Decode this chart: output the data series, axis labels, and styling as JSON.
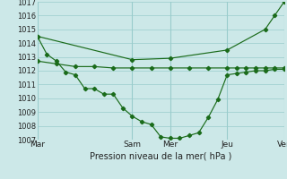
{
  "background_color": "#cce8e8",
  "grid_color": "#99cccc",
  "line_color": "#1a6b1a",
  "xlabel": "Pression niveau de la mer( hPa )",
  "ylim": [
    1007,
    1017
  ],
  "yticks": [
    1007,
    1008,
    1009,
    1010,
    1011,
    1012,
    1013,
    1014,
    1015,
    1016,
    1017
  ],
  "day_labels": [
    "Mar",
    "Sam",
    "Mer",
    "Jeu",
    "Ven"
  ],
  "day_positions": [
    0,
    5,
    7,
    10,
    13
  ],
  "xlim": [
    0,
    13
  ],
  "line_dip_x": [
    0,
    0.5,
    1,
    1.5,
    2,
    2.5,
    3,
    3.5,
    4,
    4.5,
    5,
    5.5,
    6,
    6.5,
    7,
    7.5,
    8,
    8.5,
    9,
    9.5,
    10,
    10.5,
    11,
    11.5,
    12,
    12.5,
    13
  ],
  "line_dip_y": [
    1014.5,
    1013.2,
    1012.7,
    1011.9,
    1011.7,
    1010.7,
    1010.7,
    1010.3,
    1010.3,
    1009.3,
    1008.7,
    1008.3,
    1008.1,
    1007.2,
    1007.1,
    1007.1,
    1007.3,
    1007.5,
    1008.6,
    1009.9,
    1011.7,
    1011.8,
    1011.9,
    1012.0,
    1012.0,
    1012.1,
    1012.1
  ],
  "line_flat_x": [
    0,
    1,
    2,
    3,
    4,
    5,
    6,
    7,
    8,
    9,
    10,
    10.5,
    11,
    11.5,
    12,
    12.5,
    13
  ],
  "line_flat_y": [
    1012.7,
    1012.5,
    1012.3,
    1012.3,
    1012.2,
    1012.2,
    1012.2,
    1012.2,
    1012.2,
    1012.2,
    1012.2,
    1012.2,
    1012.2,
    1012.2,
    1012.2,
    1012.2,
    1012.2
  ],
  "line_tri_x": [
    0,
    5,
    7,
    10,
    12,
    12.5,
    13
  ],
  "line_tri_y": [
    1014.5,
    1012.8,
    1012.9,
    1013.5,
    1015.0,
    1016.0,
    1017.0
  ]
}
